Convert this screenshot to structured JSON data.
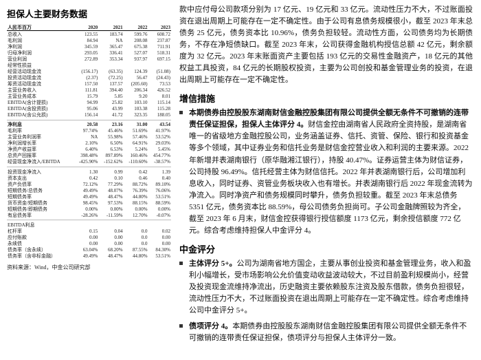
{
  "leftHeader": "担保人主要财务数据",
  "currencyNote": "人民币百万",
  "years": [
    "2020",
    "2021",
    "2022",
    "2023"
  ],
  "rows": [
    {
      "k": "总收入",
      "v": [
        "123.55",
        "183.74",
        "599.76",
        "608.72"
      ]
    },
    {
      "k": "毛利润",
      "v": [
        "84.94",
        "NA",
        "208.08",
        "237.87"
      ]
    },
    {
      "k": "净利润",
      "v": [
        "345.59",
        "365.47",
        "675.38",
        "711.91"
      ]
    },
    {
      "k": "归母净利润",
      "v": [
        "293.05",
        "336.41",
        "527.07",
        "518.31"
      ]
    },
    {
      "k": "营业利润",
      "v": [
        "272.89",
        "353.34",
        "937.97",
        "697.15"
      ]
    },
    {
      "k": "经常性损益",
      "v": [
        "",
        "",
        "",
        ""
      ]
    },
    {
      "k": "经营活动现金流",
      "v": [
        "(156.17)",
        "(63.35)",
        "124.39",
        "(51.08)"
      ]
    },
    {
      "k": "投资活动现金流",
      "v": [
        "(2.37)",
        "(72.25)",
        "56.47",
        "(24.43)"
      ]
    },
    {
      "k": "筹资活动现金流",
      "v": [
        "157.50",
        "137.57",
        "(205.60)",
        "73.53"
      ]
    },
    {
      "k": "主营业务收入",
      "v": [
        "111.81",
        "394.40",
        "206.34",
        "426.52"
      ]
    },
    {
      "k": "主营业务成本",
      "v": [
        "15.79",
        "5.85",
        "9.20",
        "8.01"
      ]
    },
    {
      "k": "EBITDA(含计提损)",
      "v": [
        "94.99",
        "25.82",
        "103.10",
        "115.14"
      ]
    },
    {
      "k": "EBITDA(含投资损)",
      "v": [
        "95.06",
        "43.99",
        "103.38",
        "115.28"
      ]
    },
    {
      "k": "EBITDA(含公允损)",
      "v": [
        "156.14",
        "41.72",
        "323.35",
        "188.05"
      ]
    },
    {
      "k": "净利息",
      "v": [
        "20.58",
        "23.16",
        "31.00",
        "43.54"
      ],
      "cls": "bold-row",
      "rule": true
    },
    {
      "k": "毛利率",
      "v": [
        "97.74%",
        "45.46%",
        "51.69%",
        "41.97%"
      ]
    },
    {
      "k": "主营业务利润率",
      "v": [
        "NA",
        "55.98%",
        "57.46%",
        "53.52%"
      ]
    },
    {
      "k": "净利润增长率",
      "v": [
        "2.10%",
        "6.50%",
        "64.91%",
        "29.03%"
      ]
    },
    {
      "k": "净资产收益率",
      "v": [
        "6.40%",
        "6.53%",
        "5.24%",
        "5.45%"
      ]
    },
    {
      "k": "总资产回报率",
      "v": [
        "398.48%",
        "897.89%",
        "160.46%",
        "454.77%"
      ]
    },
    {
      "k": "经营现金净流入/EBITDA",
      "v": [
        "-425.90%",
        "-152.62%",
        "-110.60%",
        "-38.57%"
      ]
    },
    {
      "k": "投资现金净流入",
      "v": [
        "1.30",
        "0.99",
        "0.42",
        "1.39"
      ],
      "rule": true
    },
    {
      "k": "资本支出",
      "v": [
        "0.42",
        "0.10",
        "0.46",
        "0.40"
      ]
    },
    {
      "k": "资产负债率",
      "v": [
        "72.12%",
        "77.29%",
        "88.72%",
        "89.10%"
      ]
    },
    {
      "k": "短期债务/总债务",
      "v": [
        "49.49%",
        "48.07%",
        "76.39%",
        "76.06%"
      ]
    },
    {
      "k": "短期债务率",
      "v": [
        "49.49%",
        "48.47%",
        "44.80%",
        "53.51%"
      ]
    },
    {
      "k": "货币资金/短期债务",
      "v": [
        "98.45%",
        "97.53%",
        "88.15%",
        "88.59%"
      ]
    },
    {
      "k": "短期债务/即期债务",
      "v": [
        "0.00%",
        "0.00%",
        "0.00%",
        "0.00%"
      ]
    },
    {
      "k": "有息债务率",
      "v": [
        "-28.26%",
        "-11.59%",
        "12.70%",
        "-0.07%"
      ]
    },
    {
      "k": "EBITDA利息",
      "v": [
        "",
        "",
        "",
        ""
      ],
      "rule": true
    },
    {
      "k": "杠杆率",
      "v": [
        "0.15",
        "0.04",
        "0.0",
        "0.02"
      ]
    },
    {
      "k": "应付账款",
      "v": [
        "0.00",
        "0.00",
        "0.0",
        "0.00"
      ]
    },
    {
      "k": "永续债",
      "v": [
        "0.00",
        "0.00",
        "0.0",
        "0.00"
      ]
    },
    {
      "k": "债务率（含永续）",
      "v": [
        "63.04%",
        "68.20%",
        "87.55%",
        "84.30%"
      ]
    },
    {
      "k": "债务率（含非标金融）",
      "v": [
        "49.49%",
        "48.47%",
        "44.80%",
        "53.51%"
      ]
    }
  ],
  "source": "资料来源：Wind，中金公司研究部",
  "topPara": "款中应付母公司款项分别为 17 亿元、19 亿元和 33 亿元。流动性压力不大，不过账面投资在退出周期上可能存在一定不确定性。由于公司有息债务规模很小，截至 2023 年末总债务 25 亿元，债务资本比 10.96%，债务负担较轻。流动性方面，公司债务均为长期债务，不存在净短债缺口。截至 2023 年末，公司获得金融机构授信总额 42 亿元，剩余额度为 32 亿元。2023 年末账面资产主要包括 193 亿元的交易性金融资产，18 亿元的其他权益工具投资，84 亿元的长期股权投资，主要为公司创投和基金管理业务的投资，在退出周期上可能存在一定不确定性。",
  "sec1Title": "增信措施",
  "sec1Bullet": {
    "bold": "本期债券由控股股东湖南财信金融控股集团有限公司提供全额无条件不可撤销的连带责任保证担保，担保人主体评分 4。",
    "rest": "财信金控由湖南省人民政府全资持股，是湖南省唯一的省级地方金融控股公司，业务涵盖证券、信托、资管、保险、银行和投资基金等多个领域，其中证券业务和信托业务是财信金控营业收入和利润的主要来源。2022 年新增并表湖南银行（原华融湘江银行），持股 40.47%。证券运营主体为财信证券，公司持股 96.49%。信托经营主体为财信信托。2022 年并表湖南银行后，公司增加利息收入，同时证券、资管业务板块收入也有增长。并表湖南银行后 2022 年现金流转为净流入。同时净资产和债务规模同时攀升，债务负担较重。截至 2023 年末总债务 5351 亿元，债务资本比 88.59%，母公司债务负担尚可。子公司金融牌照较为齐全，截至 2023 年 6 月末，财信金控获得银行授信额度 1173 亿元，剩余授信额度 772 亿元。综合考虑维持担保人中金评分 4。"
  },
  "sec2Title": "中金评分",
  "sec2bullets": [
    {
      "bold": "主体评分 5+。",
      "rest": "公司为湖南省地方国企，主要从事创业投资和基金管理业务，收入和盈利小幅增长，受市场影响公允价值变动收益波动较大，不过目前盈利规模尚小，经营及投资现金流维持净流出，历史融资主要依赖股东注资及股东借款，债务负担很轻，流动性压力不大，不过账面投资在退出周期上可能存在一定不确定性。综合考虑维持公司中金评分 5+。"
    },
    {
      "bold": "债项评分 4。",
      "rest": "本期债券由控股股东湖南财信金融控股集团有限公司提供全额无条件不可撤销的连带责任保证担保，债项评分与担保人主体评分一致。"
    }
  ]
}
